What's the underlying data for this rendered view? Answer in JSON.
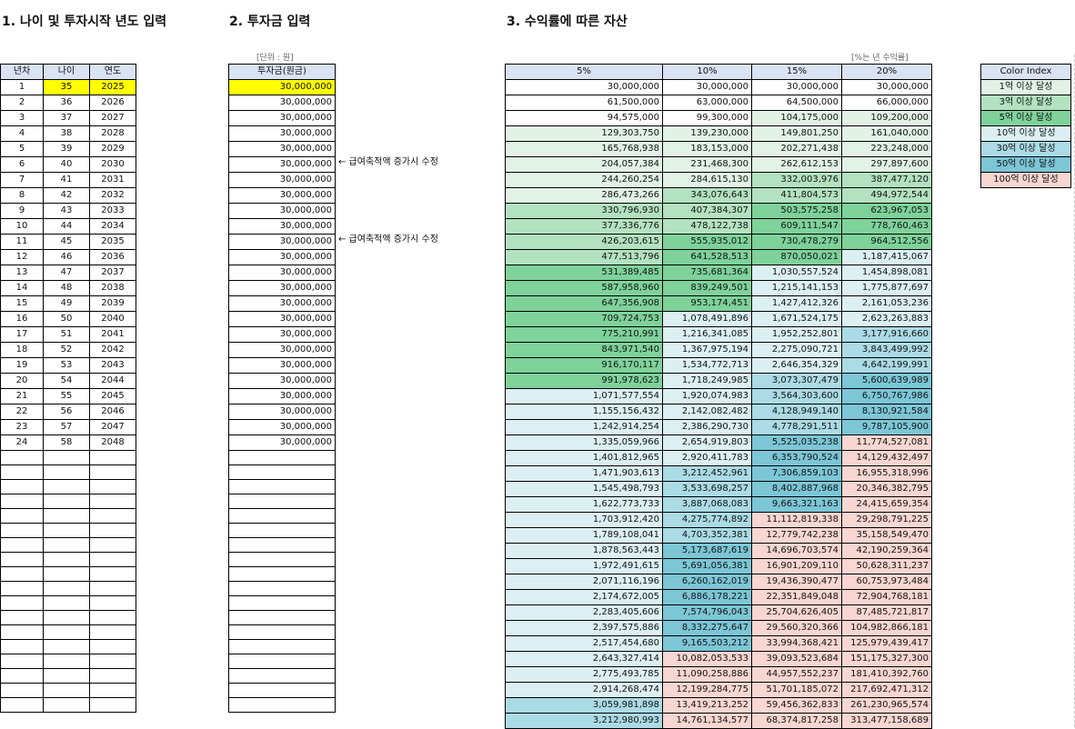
{
  "section1": {
    "title": "1. 나이 및 투자시작 년도 입력",
    "headers": [
      "년차",
      "나이",
      "연도"
    ],
    "rows": [
      [
        "1",
        "35",
        "2025"
      ],
      [
        "2",
        "36",
        "2026"
      ],
      [
        "3",
        "37",
        "2027"
      ],
      [
        "4",
        "38",
        "2028"
      ],
      [
        "5",
        "39",
        "2029"
      ],
      [
        "6",
        "40",
        "2030"
      ],
      [
        "7",
        "41",
        "2031"
      ],
      [
        "8",
        "42",
        "2032"
      ],
      [
        "9",
        "43",
        "2033"
      ],
      [
        "10",
        "44",
        "2034"
      ],
      [
        "11",
        "45",
        "2035"
      ],
      [
        "12",
        "46",
        "2036"
      ],
      [
        "13",
        "47",
        "2037"
      ],
      [
        "14",
        "48",
        "2038"
      ],
      [
        "15",
        "49",
        "2039"
      ],
      [
        "16",
        "50",
        "2040"
      ],
      [
        "17",
        "51",
        "2041"
      ],
      [
        "18",
        "52",
        "2042"
      ],
      [
        "19",
        "53",
        "2043"
      ],
      [
        "20",
        "54",
        "2044"
      ],
      [
        "21",
        "55",
        "2045"
      ],
      [
        "22",
        "56",
        "2046"
      ],
      [
        "23",
        "57",
        "2047"
      ],
      [
        "24",
        "58",
        "2048"
      ]
    ],
    "input_highlight": "#ffff00"
  },
  "section2": {
    "title": "2. 투자금 입력",
    "unit": "[단위 : 원]",
    "header": "투자금(원금)",
    "values": [
      "30,000,000",
      "30,000,000",
      "30,000,000",
      "30,000,000",
      "30,000,000",
      "30,000,000",
      "30,000,000",
      "30,000,000",
      "30,000,000",
      "30,000,000",
      "30,000,000",
      "30,000,000",
      "30,000,000",
      "30,000,000",
      "30,000,000",
      "30,000,000",
      "30,000,000",
      "30,000,000",
      "30,000,000",
      "30,000,000",
      "30,000,000",
      "30,000,000",
      "30,000,000",
      "30,000,000"
    ],
    "notes": [
      "← 급여축적액 증가시 수정",
      "← 급여축적액 증가시 수정"
    ]
  },
  "section3": {
    "title": "3. 수익률에 따른 자산",
    "subtitle": "[%는 년 수익률]",
    "headers": [
      "5%",
      "10%",
      "15%",
      "20%"
    ],
    "rows": [
      [
        "30,000,000",
        "30,000,000",
        "30,000,000",
        "30,000,000"
      ],
      [
        "61,500,000",
        "63,000,000",
        "64,500,000",
        "66,000,000"
      ],
      [
        "94,575,000",
        "99,300,000",
        "104,175,000",
        "109,200,000"
      ],
      [
        "129,303,750",
        "139,230,000",
        "149,801,250",
        "161,040,000"
      ],
      [
        "165,768,938",
        "183,153,000",
        "202,271,438",
        "223,248,000"
      ],
      [
        "204,057,384",
        "231,468,300",
        "262,612,153",
        "297,897,600"
      ],
      [
        "244,260,254",
        "284,615,130",
        "332,003,976",
        "387,477,120"
      ],
      [
        "286,473,266",
        "343,076,643",
        "411,804,573",
        "494,972,544"
      ],
      [
        "330,796,930",
        "407,384,307",
        "503,575,258",
        "623,967,053"
      ],
      [
        "377,336,776",
        "478,122,738",
        "609,111,547",
        "778,760,463"
      ],
      [
        "426,203,615",
        "555,935,012",
        "730,478,279",
        "964,512,556"
      ],
      [
        "477,513,796",
        "641,528,513",
        "870,050,021",
        "1,187,415,067"
      ],
      [
        "531,389,485",
        "735,681,364",
        "1,030,557,524",
        "1,454,898,081"
      ],
      [
        "587,958,960",
        "839,249,501",
        "1,215,141,153",
        "1,775,877,697"
      ],
      [
        "647,356,908",
        "953,174,451",
        "1,427,412,326",
        "2,161,053,236"
      ],
      [
        "709,724,753",
        "1,078,491,896",
        "1,671,524,175",
        "2,623,263,883"
      ],
      [
        "775,210,991",
        "1,216,341,085",
        "1,952,252,801",
        "3,177,916,660"
      ],
      [
        "843,971,540",
        "1,367,975,194",
        "2,275,090,721",
        "3,843,499,992"
      ],
      [
        "916,170,117",
        "1,534,772,713",
        "2,646,354,329",
        "4,642,199,991"
      ],
      [
        "991,978,623",
        "1,718,249,985",
        "3,073,307,479",
        "5,600,639,989"
      ],
      [
        "1,071,577,554",
        "1,920,074,983",
        "3,564,303,600",
        "6,750,767,986"
      ],
      [
        "1,155,156,432",
        "2,142,082,482",
        "4,128,949,140",
        "8,130,921,584"
      ],
      [
        "1,242,914,254",
        "2,386,290,730",
        "4,778,291,511",
        "9,787,105,900"
      ],
      [
        "1,335,059,966",
        "2,654,919,803",
        "5,525,035,238",
        "11,774,527,081"
      ],
      [
        "1,401,812,965",
        "2,920,411,783",
        "6,353,790,524",
        "14,129,432,497"
      ],
      [
        "1,471,903,613",
        "3,212,452,961",
        "7,306,859,103",
        "16,955,318,996"
      ],
      [
        "1,545,498,793",
        "3,533,698,257",
        "8,402,887,968",
        "20,346,382,795"
      ],
      [
        "1,622,773,733",
        "3,887,068,083",
        "9,663,321,163",
        "24,415,659,354"
      ],
      [
        "1,703,912,420",
        "4,275,774,892",
        "11,112,819,338",
        "29,298,791,225"
      ],
      [
        "1,789,108,041",
        "4,703,352,381",
        "12,779,742,238",
        "35,158,549,470"
      ],
      [
        "1,878,563,443",
        "5,173,687,619",
        "14,696,703,574",
        "42,190,259,364"
      ],
      [
        "1,972,491,615",
        "5,691,056,381",
        "16,901,209,110",
        "50,628,311,237"
      ],
      [
        "2,071,116,196",
        "6,260,162,019",
        "19,436,390,477",
        "60,753,973,484"
      ],
      [
        "2,174,672,005",
        "6,886,178,221",
        "22,351,849,048",
        "72,904,768,181"
      ],
      [
        "2,283,405,606",
        "7,574,796,043",
        "25,704,626,405",
        "87,485,721,817"
      ],
      [
        "2,397,575,886",
        "8,332,275,647",
        "29,560,320,366",
        "104,982,866,181"
      ],
      [
        "2,517,454,680",
        "9,165,503,212",
        "33,994,368,421",
        "125,979,439,417"
      ],
      [
        "2,643,327,414",
        "10,082,053,533",
        "39,093,523,684",
        "151,175,327,300"
      ],
      [
        "2,775,493,785",
        "11,090,258,886",
        "44,957,552,237",
        "181,410,392,760"
      ],
      [
        "2,914,268,474",
        "12,199,284,775",
        "51,701,185,072",
        "217,692,471,312"
      ],
      [
        "3,059,981,898",
        "13,419,213,252",
        "59,456,362,833",
        "261,230,965,574"
      ],
      [
        "3,212,980,993",
        "14,761,134,577",
        "68,374,817,258",
        "313,477,158,689"
      ]
    ]
  },
  "color_index": {
    "title": "Color Index",
    "items": [
      {
        "label": "1억 이상 달성",
        "color": "#e2f3e6"
      },
      {
        "label": "3억 이상 달성",
        "color": "#b3e2c0"
      },
      {
        "label": "5억 이상 달성",
        "color": "#7ed29a"
      },
      {
        "label": "10억 이상 달성",
        "color": "#dcf0f4"
      },
      {
        "label": "30억 이상 달성",
        "color": "#abdbe5"
      },
      {
        "label": "50억 이상 달성",
        "color": "#7cc6d6"
      },
      {
        "label": "100억 이상 달성",
        "color": "#f8d6d1"
      }
    ]
  }
}
